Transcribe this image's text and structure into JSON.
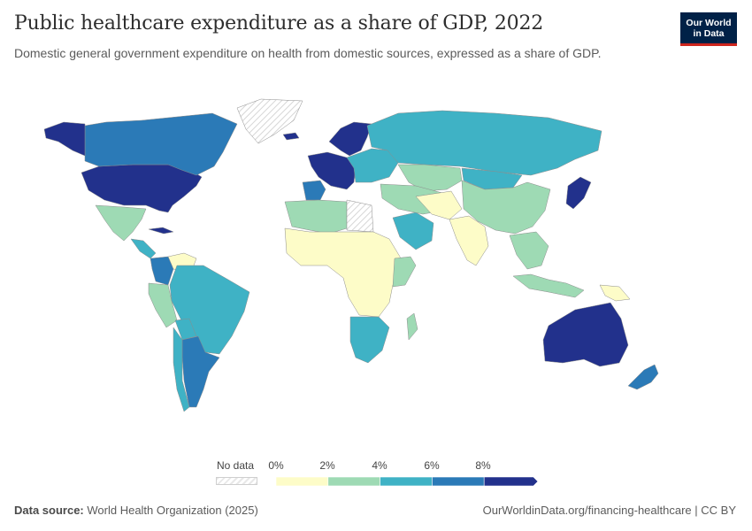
{
  "header": {
    "title": "Public healthcare expenditure as a share of GDP, 2022",
    "subtitle": "Domestic general government expenditure on health from domestic sources, expressed as a share of GDP."
  },
  "logo": {
    "line1": "Our World",
    "line2": "in Data"
  },
  "legend": {
    "no_data_label": "No data",
    "ticks": [
      "0%",
      "2%",
      "4%",
      "6%",
      "8%"
    ],
    "bins": [
      {
        "range": "0-2%",
        "color": "#fdfcc8"
      },
      {
        "range": "2-4%",
        "color": "#9edab4"
      },
      {
        "range": "4-6%",
        "color": "#3fb2c5"
      },
      {
        "range": "6-8%",
        "color": "#2b7ab7"
      },
      {
        "range": ">8%",
        "color": "#22318c"
      }
    ],
    "no_data_color": "#e8e8e8"
  },
  "footer": {
    "source_label": "Data source:",
    "source_text": "World Health Organization (2025)",
    "credit": "OurWorldinData.org/financing-healthcare | CC BY"
  },
  "chart_data": {
    "type": "choropleth",
    "unit": "% of GDP",
    "year": 2022,
    "regions": [
      {
        "name": "United States",
        "bin": ">8%"
      },
      {
        "name": "Canada",
        "bin": "6-8%"
      },
      {
        "name": "Alaska",
        "bin": ">8%"
      },
      {
        "name": "Greenland",
        "bin": "No data"
      },
      {
        "name": "Mexico",
        "bin": "2-4%"
      },
      {
        "name": "Central America",
        "bin": "4-6%"
      },
      {
        "name": "Cuba",
        "bin": ">8%"
      },
      {
        "name": "Venezuela",
        "bin": "0-2%"
      },
      {
        "name": "Colombia",
        "bin": "6-8%"
      },
      {
        "name": "Peru",
        "bin": "2-4%"
      },
      {
        "name": "Brazil",
        "bin": "4-6%"
      },
      {
        "name": "Bolivia",
        "bin": "4-6%"
      },
      {
        "name": "Argentina",
        "bin": "6-8%"
      },
      {
        "name": "Chile",
        "bin": "4-6%"
      },
      {
        "name": "Iceland",
        "bin": ">8%"
      },
      {
        "name": "Scandinavia",
        "bin": ">8%"
      },
      {
        "name": "Western Europe",
        "bin": ">8%"
      },
      {
        "name": "Spain",
        "bin": "6-8%"
      },
      {
        "name": "Eastern Europe",
        "bin": "4-6%"
      },
      {
        "name": "Russia",
        "bin": "4-6%"
      },
      {
        "name": "Kazakhstan",
        "bin": "2-4%"
      },
      {
        "name": "Mongolia",
        "bin": "4-6%"
      },
      {
        "name": "China",
        "bin": "2-4%"
      },
      {
        "name": "Japan",
        "bin": ">8%"
      },
      {
        "name": "North Africa",
        "bin": "2-4%"
      },
      {
        "name": "Libya",
        "bin": "No data"
      },
      {
        "name": "Saudi Arabia",
        "bin": "4-6%"
      },
      {
        "name": "Middle East",
        "bin": "2-4%"
      },
      {
        "name": "Central Asia",
        "bin": "0-2%"
      },
      {
        "name": "India",
        "bin": "0-2%"
      },
      {
        "name": "Southeast Asia",
        "bin": "2-4%"
      },
      {
        "name": "Sub-Saharan Africa",
        "bin": "0-2%"
      },
      {
        "name": "East Africa",
        "bin": "2-4%"
      },
      {
        "name": "Southern Africa",
        "bin": "4-6%"
      },
      {
        "name": "Madagascar",
        "bin": "2-4%"
      },
      {
        "name": "Indonesia",
        "bin": "2-4%"
      },
      {
        "name": "Papua New Guinea",
        "bin": "0-2%"
      },
      {
        "name": "Australia",
        "bin": ">8%"
      },
      {
        "name": "New Zealand",
        "bin": "6-8%"
      }
    ]
  }
}
